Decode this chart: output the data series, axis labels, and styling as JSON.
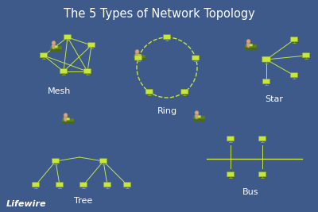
{
  "background_color": "#3d5a8a",
  "title": "The 5 Types of Network Topology",
  "title_color": "#ffffff",
  "title_fontsize": 10.5,
  "label_color": "#ffffff",
  "label_fontsize": 8,
  "node_color": "#c8e63c",
  "node_edge_color": "#8aab20",
  "line_color": "#c8e63c",
  "desk_color": "#5a8020",
  "lifewire_text": "Lifewire",
  "lifewire_color": "#ffffff",
  "lifewire_fontsize": 8,
  "topologies": [
    "Mesh",
    "Ring",
    "Star",
    "Tree",
    "Bus"
  ]
}
